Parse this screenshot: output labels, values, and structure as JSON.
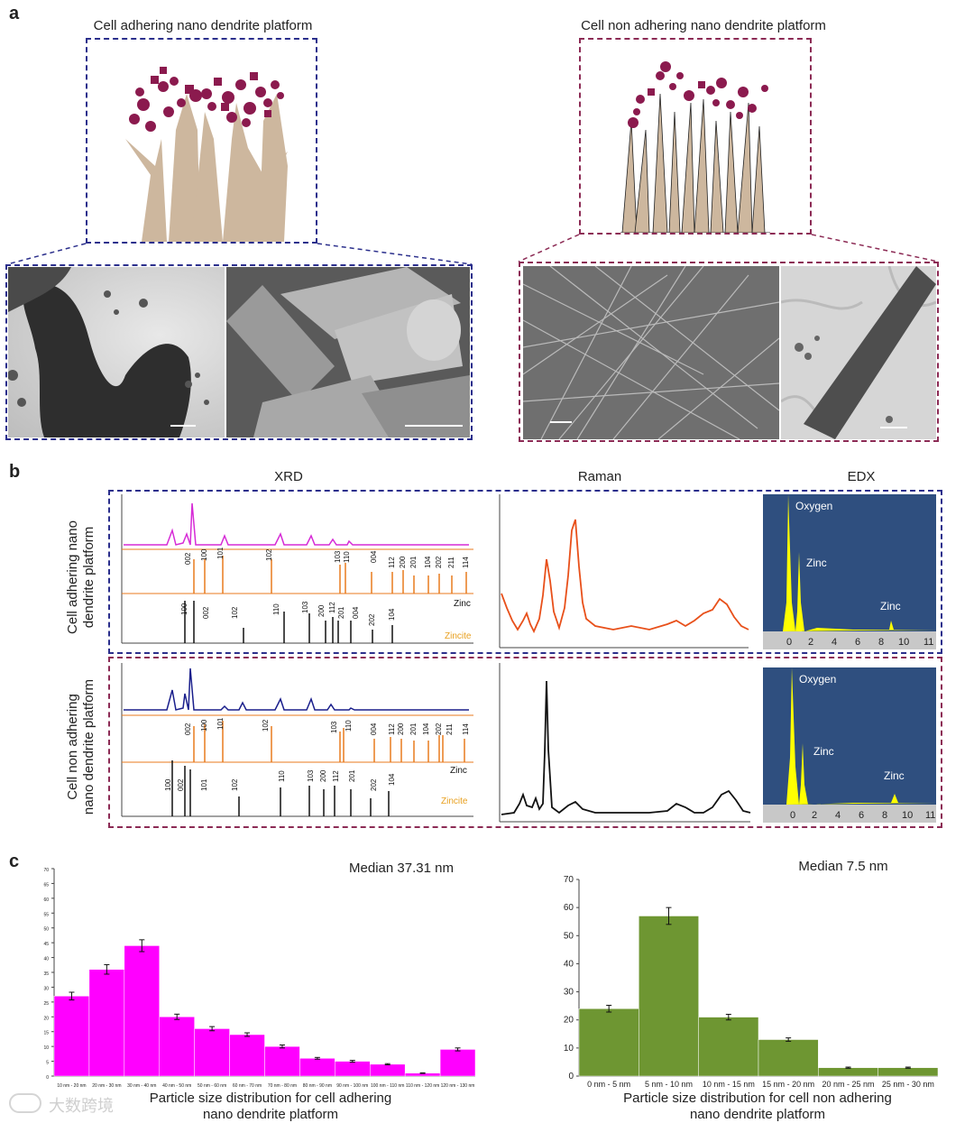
{
  "panels": {
    "a": {
      "letter": "a",
      "left_title": "Cell adhering nano dendrite platform",
      "right_title": "Cell non adhering nano dendrite platform"
    },
    "b": {
      "letter": "b",
      "col_xrd": "XRD",
      "col_raman": "Raman",
      "col_edx": "EDX",
      "row1_label_line1": "Cell adhering nano",
      "row1_label_line2": "dendrite platform",
      "row2_label_line1": "Cell non adhering",
      "row2_label_line2": "nano dendrite platform",
      "ref_zinc": "Zinc",
      "ref_zincite": "Zincite",
      "edx_oxygen": "Oxygen",
      "edx_zinc": "Zinc",
      "edx_ticks": [
        "0",
        "2",
        "4",
        "6",
        "8",
        "10",
        "11"
      ],
      "row1_orange_peaks": [
        "002",
        "100",
        "101",
        "102",
        "103",
        "110",
        "004",
        "112",
        "200",
        "201",
        "104",
        "202",
        "211",
        "114"
      ],
      "row1_black_peaks": [
        "100",
        "002",
        "102",
        "110",
        "103",
        "200",
        "112",
        "201",
        "004",
        "202",
        "104"
      ],
      "row2_orange_peaks": [
        "002",
        "100",
        "101",
        "102",
        "103",
        "110",
        "004",
        "112",
        "200",
        "201",
        "104",
        "202",
        "211",
        "114"
      ],
      "row2_black_peaks": [
        "100",
        "002",
        "101",
        "102",
        "110",
        "103",
        "200",
        "112",
        "201",
        "202",
        "104"
      ]
    },
    "c": {
      "letter": "c",
      "left_median": "Median 37.31 nm",
      "right_median": "Median 7.5 nm",
      "left_caption_line1": "Particle size distribution for cell adhering",
      "left_caption_line2": "nano dendrite platform",
      "right_caption_line1": "Particle size distribution for cell non adhering",
      "right_caption_line2": "nano dendrite platform"
    }
  },
  "colors": {
    "magenta": "#ff00ff",
    "green": "#6e9632",
    "blue_dash": "#2b2f8c",
    "maroon_dash": "#8c2b55",
    "edx_bg": "#2f4f7f",
    "edx_peak": "#ffff00",
    "orange": "#e87a1e",
    "raman_orange": "#e8501a",
    "xrd_magenta": "#d62bd6",
    "xrd_blue": "#1a1f8c"
  },
  "watermark": "大数跨境",
  "chart_data": [
    {
      "type": "bar",
      "title": "Median 37.31 nm",
      "xlabel": "Particle size distribution for cell adhering nano dendrite platform",
      "ylabel": "",
      "categories": [
        "10 nm - 20 nm",
        "20 nm - 30 nm",
        "30 nm - 40 nm",
        "40 nm - 50 nm",
        "50 nm - 60 nm",
        "60 nm - 70 nm",
        "70 nm - 80 nm",
        "80 nm - 90 nm",
        "90 nm - 100 nm",
        "100 nm - 110 nm",
        "110 nm - 120 nm",
        "120 nm - 130 nm"
      ],
      "values": [
        27,
        36,
        44,
        20,
        16,
        14,
        10,
        6,
        5,
        4,
        1,
        9
      ],
      "errors": [
        1.3,
        1.6,
        2.0,
        0.9,
        0.7,
        0.6,
        0.5,
        0.3,
        0.3,
        0.2,
        0.1,
        0.5
      ],
      "ylim": [
        0,
        70
      ],
      "yticks": [
        "0",
        "5",
        "10",
        "15",
        "20",
        "25",
        "30",
        "35",
        "40",
        "45",
        "50",
        "55",
        "60",
        "65",
        "70"
      ],
      "color": "#ff00ff"
    },
    {
      "type": "bar",
      "title": "Median 7.5 nm",
      "xlabel": "Particle size distribution for cell non adhering nano dendrite platform",
      "ylabel": "",
      "categories": [
        "0 nm - 5 nm",
        "5 nm - 10 nm",
        "10 nm - 15 nm",
        "15 nm - 20 nm",
        "20 nm - 25 nm",
        "25 nm - 30 nm"
      ],
      "values": [
        24,
        57,
        21,
        13,
        3,
        3
      ],
      "errors": [
        1.2,
        3.0,
        1.0,
        0.6,
        0.2,
        0.2
      ],
      "ylim": [
        0,
        70
      ],
      "yticks": [
        "0",
        "10",
        "20",
        "30",
        "40",
        "50",
        "60",
        "70"
      ],
      "color": "#6e9632"
    }
  ]
}
